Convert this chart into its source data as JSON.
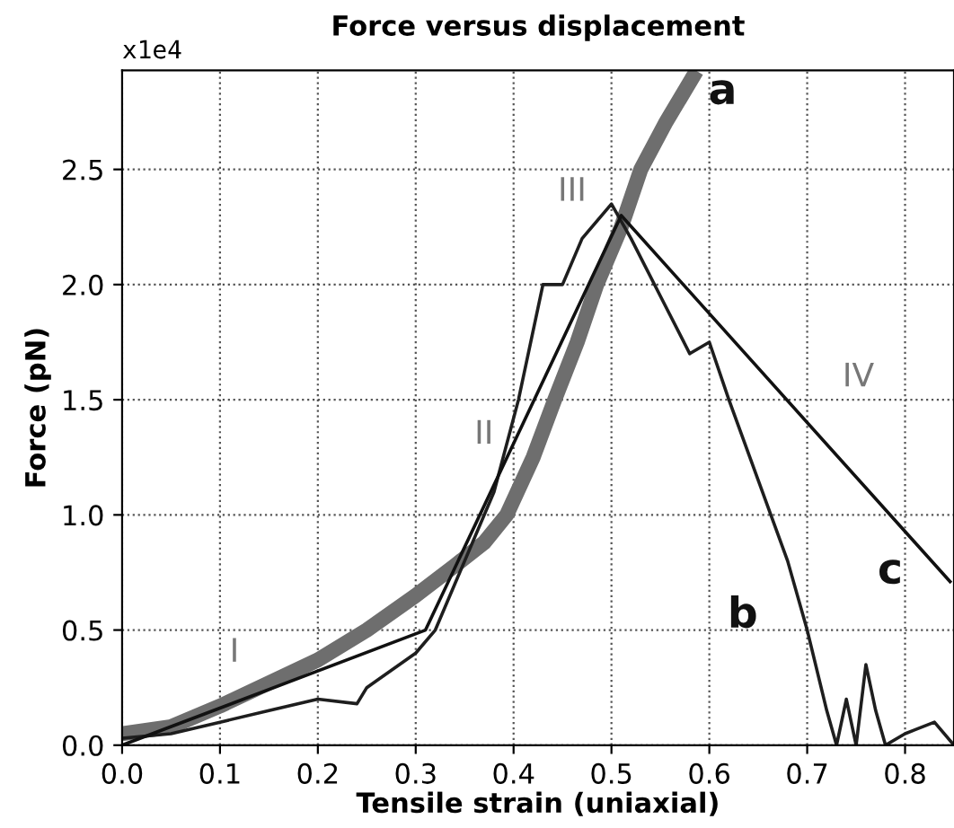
{
  "chart_data": {
    "type": "line",
    "title": "Force versus displacement",
    "xlabel": "Tensile strain (uniaxial)",
    "ylabel": "Force (pN)",
    "xlim": [
      0,
      0.85
    ],
    "ylim": [
      0,
      2.93
    ],
    "xticks": [
      {
        "value": 0,
        "label": "0.0"
      },
      0.1,
      0.2,
      0.3,
      0.4,
      0.5,
      0.6,
      0.7,
      0.8
    ],
    "yticks": [
      {
        "value": 0,
        "label": "0.0"
      },
      0.5,
      {
        "value": 1,
        "label": "1.0"
      },
      1.5,
      {
        "value": 2,
        "label": "2.0"
      },
      2.5
    ],
    "grid": true,
    "line_style": "solid",
    "series": [
      {
        "name": "a",
        "color": "#6e6e6e",
        "x": [
          0,
          0.05,
          0.1,
          0.15,
          0.2,
          0.25,
          0.3,
          0.34,
          0.37,
          0.393,
          0.42,
          0.442,
          0.465,
          0.485,
          0.51,
          0.53,
          0.555,
          0.583
        ],
        "values": [
          0.05,
          0.08,
          0.17,
          0.27,
          0.37,
          0.5,
          0.65,
          0.78,
          0.88,
          1.0,
          1.25,
          1.5,
          1.75,
          2.0,
          2.25,
          2.5,
          2.7,
          2.9
        ]
      },
      {
        "name": "b",
        "color": "#1e1e1e",
        "x": [
          0,
          0.05,
          0.1,
          0.15,
          0.2,
          0.24,
          0.25,
          0.3,
          0.32,
          0.35,
          0.38,
          0.405,
          0.43,
          0.45,
          0.47,
          0.5,
          0.52,
          0.55,
          0.58,
          0.6,
          0.62,
          0.65,
          0.68,
          0.7,
          0.72,
          0.73,
          0.74,
          0.75,
          0.76,
          0.77,
          0.78,
          0.8,
          0.83,
          0.85
        ],
        "values": [
          0.03,
          0.05,
          0.1,
          0.15,
          0.2,
          0.18,
          0.25,
          0.4,
          0.5,
          0.8,
          1.1,
          1.5,
          2.0,
          2.0,
          2.2,
          2.35,
          2.2,
          1.95,
          1.7,
          1.75,
          1.5,
          1.15,
          0.8,
          0.5,
          0.15,
          0,
          0.2,
          0,
          0.35,
          0.15,
          0,
          0.05,
          0.1,
          0
        ]
      },
      {
        "name": "c",
        "color": "#111111",
        "x": [
          0,
          0.31,
          0.51,
          0.846
        ],
        "values": [
          0,
          0.5,
          2.3,
          0.71
        ]
      }
    ],
    "annotations": [
      "x1e4",
      "I",
      "II",
      "III",
      "IV"
    ]
  }
}
